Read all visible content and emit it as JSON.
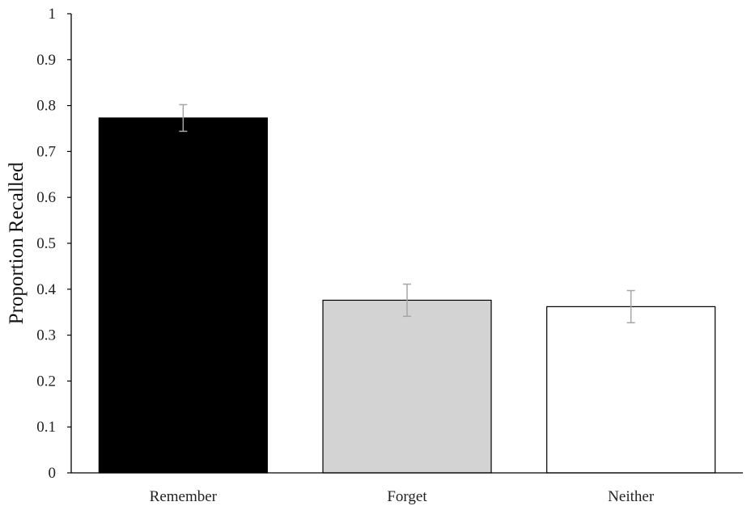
{
  "chart_data": {
    "type": "bar",
    "title": "",
    "xlabel": "",
    "ylabel": "Proportion Recalled",
    "ylim": [
      0,
      1
    ],
    "yticks": [
      "0",
      "0.1",
      "0.2",
      "0.3",
      "0.4",
      "0.5",
      "0.6",
      "0.7",
      "0.8",
      "0.9",
      "1"
    ],
    "categories": [
      "Remember",
      "Forget",
      "Neither"
    ],
    "values": [
      0.773,
      0.376,
      0.362
    ],
    "errors": [
      0.029,
      0.035,
      0.035
    ],
    "bar_colors": [
      "#000000",
      "#d3d3d3",
      "#ffffff"
    ],
    "bar_edge_color": "#000000",
    "error_bar_color": "#a6a6a6",
    "grid": false,
    "legend": "none"
  }
}
